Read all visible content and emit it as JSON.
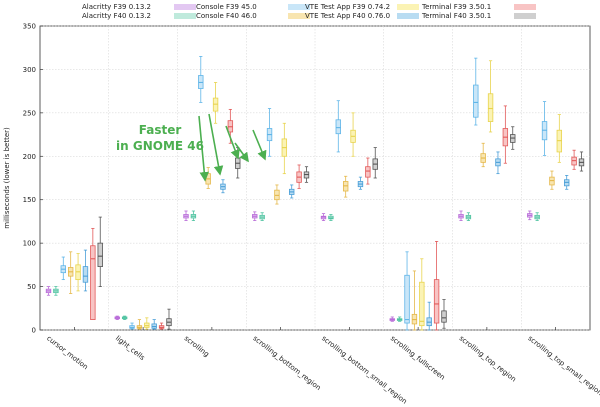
{
  "chart_data": {
    "type": "boxplot",
    "ylabel": "milliseconds (lower is better)",
    "ylim": [
      0,
      350
    ],
    "yticks": [
      0,
      50,
      100,
      150,
      200,
      250,
      300,
      350
    ],
    "categories": [
      "cursor_motion",
      "light_cells",
      "scrolling",
      "scrolling_bottom_region",
      "scrolling_bottom_small_region",
      "scrolling_fullscreen",
      "scrolling_top_region",
      "scrolling_top_small_region"
    ],
    "annotation": {
      "line1": "Faster",
      "line2": "in GNOME 46",
      "color": "#4caf50"
    },
    "series": [
      {
        "name": "Alacritty F39 0.13.2",
        "fill": "#e3c8f2",
        "stroke": "#b86ad8",
        "boxes": [
          {
            "whisker_low": 40,
            "q1": 43,
            "median": 45,
            "q3": 47,
            "whisker_high": 50
          },
          {
            "whisker_low": 12,
            "q1": 13,
            "median": 14,
            "q3": 15,
            "whisker_high": 16
          },
          {
            "whisker_low": 126,
            "q1": 129,
            "median": 131,
            "q3": 133,
            "whisker_high": 137
          },
          {
            "whisker_low": 126,
            "q1": 129,
            "median": 131,
            "q3": 133,
            "whisker_high": 136
          },
          {
            "whisker_low": 126,
            "q1": 128,
            "median": 130,
            "q3": 131,
            "whisker_high": 134
          },
          {
            "whisker_low": 10,
            "q1": 11,
            "median": 12,
            "q3": 13,
            "whisker_high": 15
          },
          {
            "whisker_low": 126,
            "q1": 129,
            "median": 131,
            "q3": 133,
            "whisker_high": 137
          },
          {
            "whisker_low": 127,
            "q1": 130,
            "median": 132,
            "q3": 134,
            "whisker_high": 137
          }
        ]
      },
      {
        "name": "Alacritty F40 0.13.2",
        "fill": "#bfeadc",
        "stroke": "#4fc3a1",
        "boxes": [
          {
            "whisker_low": 40,
            "q1": 43,
            "median": 45,
            "q3": 47,
            "whisker_high": 50
          },
          {
            "whisker_low": 12,
            "q1": 13,
            "median": 14,
            "q3": 15,
            "whisker_high": 16
          },
          {
            "whisker_low": 126,
            "q1": 129,
            "median": 131,
            "q3": 133,
            "whisker_high": 137
          },
          {
            "whisker_low": 126,
            "q1": 128,
            "median": 130,
            "q3": 132,
            "whisker_high": 135
          },
          {
            "whisker_low": 126,
            "q1": 128,
            "median": 129,
            "q3": 131,
            "whisker_high": 133
          },
          {
            "whisker_low": 10,
            "q1": 11,
            "median": 12,
            "q3": 13,
            "whisker_high": 15
          },
          {
            "whisker_low": 126,
            "q1": 128,
            "median": 130,
            "q3": 132,
            "whisker_high": 135
          },
          {
            "whisker_low": 126,
            "q1": 128,
            "median": 130,
            "q3": 132,
            "whisker_high": 135
          }
        ]
      },
      {
        "name": "Console F39 45.0",
        "fill": "#c9e6f8",
        "stroke": "#5fb5e8",
        "boxes": [
          {
            "whisker_low": 58,
            "q1": 66,
            "median": 70,
            "q3": 74,
            "whisker_high": 84
          },
          {
            "whisker_low": 1,
            "q1": 2,
            "median": 3,
            "q3": 5,
            "whisker_high": 8
          },
          {
            "whisker_low": 262,
            "q1": 278,
            "median": 285,
            "q3": 293,
            "whisker_high": 315
          },
          {
            "whisker_low": 200,
            "q1": 218,
            "median": 225,
            "q3": 232,
            "whisker_high": 255
          },
          {
            "whisker_low": 205,
            "q1": 226,
            "median": 233,
            "q3": 242,
            "whisker_high": 264
          },
          {
            "whisker_low": 0,
            "q1": 8,
            "median": 12,
            "q3": 63,
            "whisker_high": 90
          },
          {
            "whisker_low": 236,
            "q1": 245,
            "median": 262,
            "q3": 282,
            "whisker_high": 313
          },
          {
            "whisker_low": 201,
            "q1": 219,
            "median": 230,
            "q3": 240,
            "whisker_high": 263
          }
        ]
      },
      {
        "name": "Console F40 46.0",
        "fill": "#f8e5b0",
        "stroke": "#e5b84a",
        "boxes": [
          {
            "whisker_low": 42,
            "q1": 62,
            "median": 67,
            "q3": 72,
            "whisker_high": 90
          },
          {
            "whisker_low": 1,
            "q1": 2,
            "median": 3,
            "q3": 5,
            "whisker_high": 12
          },
          {
            "whisker_low": 163,
            "q1": 168,
            "median": 174,
            "q3": 180,
            "whisker_high": 187
          },
          {
            "whisker_low": 145,
            "q1": 150,
            "median": 155,
            "q3": 161,
            "whisker_high": 167
          },
          {
            "whisker_low": 153,
            "q1": 160,
            "median": 166,
            "q3": 171,
            "whisker_high": 177
          },
          {
            "whisker_low": 0,
            "q1": 7,
            "median": 12,
            "q3": 18,
            "whisker_high": 68
          },
          {
            "whisker_low": 188,
            "q1": 193,
            "median": 198,
            "q3": 203,
            "whisker_high": 215
          },
          {
            "whisker_low": 162,
            "q1": 167,
            "median": 172,
            "q3": 176,
            "whisker_high": 183
          }
        ]
      },
      {
        "name": "VTE Test App F39 0.74.2",
        "fill": "#fbf3b4",
        "stroke": "#e8d44e",
        "boxes": [
          {
            "whisker_low": 45,
            "q1": 58,
            "median": 67,
            "q3": 75,
            "whisker_high": 88
          },
          {
            "whisker_low": 1,
            "q1": 3,
            "median": 5,
            "q3": 8,
            "whisker_high": 14
          },
          {
            "whisker_low": 238,
            "q1": 252,
            "median": 260,
            "q3": 267,
            "whisker_high": 285
          },
          {
            "whisker_low": 180,
            "q1": 200,
            "median": 210,
            "q3": 220,
            "whisker_high": 238
          },
          {
            "whisker_low": 200,
            "q1": 216,
            "median": 223,
            "q3": 230,
            "whisker_high": 250
          },
          {
            "whisker_low": 0,
            "q1": 5,
            "median": 10,
            "q3": 55,
            "whisker_high": 82
          },
          {
            "whisker_low": 228,
            "q1": 240,
            "median": 255,
            "q3": 272,
            "whisker_high": 310
          },
          {
            "whisker_low": 193,
            "q1": 205,
            "median": 218,
            "q3": 230,
            "whisker_high": 248
          }
        ]
      },
      {
        "name": "VTE Test App F40 0.76.0",
        "fill": "#b8dcf2",
        "stroke": "#4a9fd8",
        "boxes": [
          {
            "whisker_low": 45,
            "q1": 55,
            "median": 62,
            "q3": 73,
            "whisker_high": 92
          },
          {
            "whisker_low": 1,
            "q1": 2,
            "median": 4,
            "q3": 7,
            "whisker_high": 12
          },
          {
            "whisker_low": 158,
            "q1": 162,
            "median": 165,
            "q3": 168,
            "whisker_high": 173
          },
          {
            "whisker_low": 152,
            "q1": 156,
            "median": 159,
            "q3": 162,
            "whisker_high": 167
          },
          {
            "whisker_low": 162,
            "q1": 165,
            "median": 168,
            "q3": 171,
            "whisker_high": 176
          },
          {
            "whisker_low": 0,
            "q1": 5,
            "median": 9,
            "q3": 14,
            "whisker_high": 32
          },
          {
            "whisker_low": 180,
            "q1": 189,
            "median": 193,
            "q3": 197,
            "whisker_high": 205
          },
          {
            "whisker_low": 162,
            "q1": 166,
            "median": 170,
            "q3": 173,
            "whisker_high": 178
          }
        ]
      },
      {
        "name": "Terminal F39 3.50.1",
        "fill": "#f8c4c4",
        "stroke": "#e25a5a",
        "boxes": [
          {
            "whisker_low": 12,
            "q1": 12,
            "median": 82,
            "q3": 97,
            "whisker_high": 117
          },
          {
            "whisker_low": 1,
            "q1": 2,
            "median": 3,
            "q3": 5,
            "whisker_high": 8
          },
          {
            "whisker_low": 215,
            "q1": 228,
            "median": 234,
            "q3": 241,
            "whisker_high": 254
          },
          {
            "whisker_low": 163,
            "q1": 170,
            "median": 176,
            "q3": 182,
            "whisker_high": 190
          },
          {
            "whisker_low": 168,
            "q1": 176,
            "median": 183,
            "q3": 188,
            "whisker_high": 198
          },
          {
            "whisker_low": 0,
            "q1": 8,
            "median": 30,
            "q3": 58,
            "whisker_high": 102
          },
          {
            "whisker_low": 192,
            "q1": 212,
            "median": 222,
            "q3": 232,
            "whisker_high": 258
          },
          {
            "whisker_low": 185,
            "q1": 190,
            "median": 195,
            "q3": 199,
            "whisker_high": 207
          }
        ]
      },
      {
        "name": "Terminal F40 3.50.1",
        "fill": "#cfcfcf",
        "stroke": "#555555",
        "boxes": [
          {
            "whisker_low": 50,
            "q1": 73,
            "median": 85,
            "q3": 100,
            "whisker_high": 130
          },
          {
            "whisker_low": 1,
            "q1": 5,
            "median": 9,
            "q3": 13,
            "whisker_high": 24
          },
          {
            "whisker_low": 175,
            "q1": 186,
            "median": 192,
            "q3": 198,
            "whisker_high": 210
          },
          {
            "whisker_low": 170,
            "q1": 175,
            "median": 179,
            "q3": 182,
            "whisker_high": 188
          },
          {
            "whisker_low": 175,
            "q1": 185,
            "median": 191,
            "q3": 197,
            "whisker_high": 210
          },
          {
            "whisker_low": 2,
            "q1": 9,
            "median": 14,
            "q3": 22,
            "whisker_high": 35
          },
          {
            "whisker_low": 208,
            "q1": 216,
            "median": 221,
            "q3": 225,
            "whisker_high": 234
          },
          {
            "whisker_low": 183,
            "q1": 189,
            "median": 193,
            "q3": 197,
            "whisker_high": 205
          }
        ]
      }
    ]
  }
}
